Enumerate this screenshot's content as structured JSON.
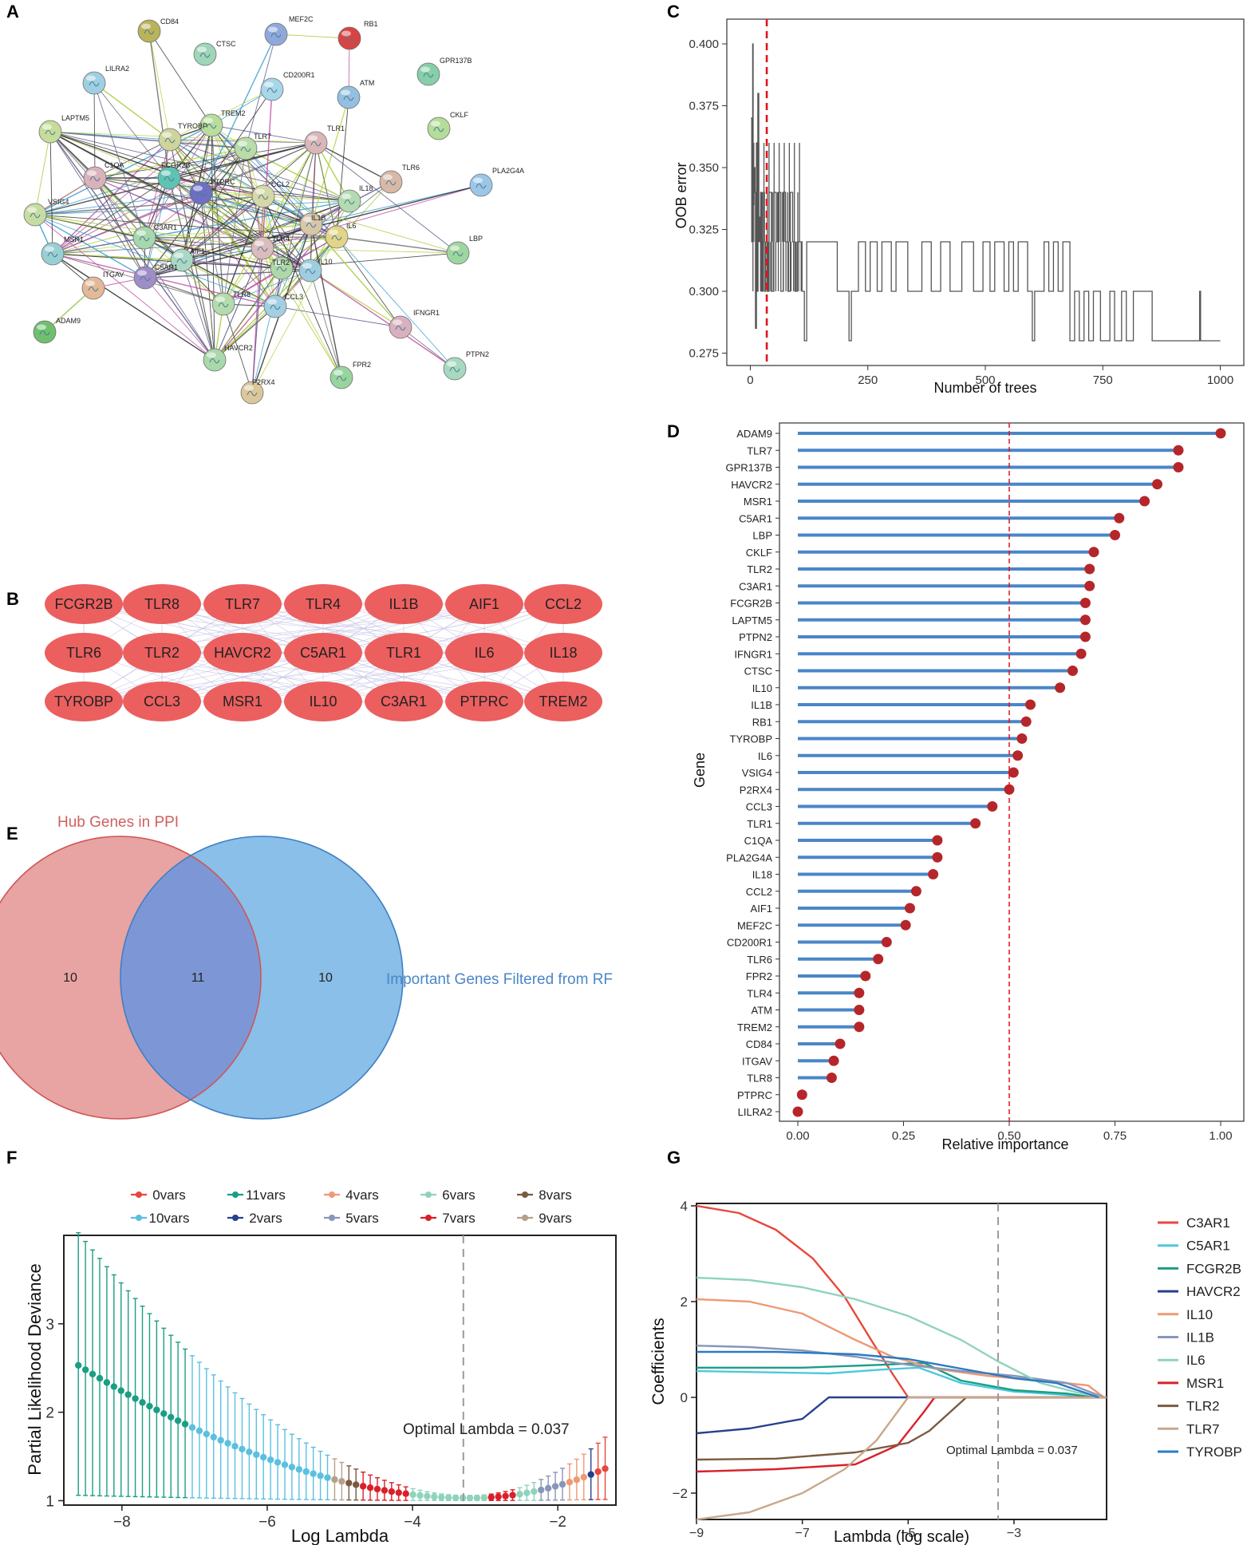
{
  "panels": {
    "A": "A",
    "B": "B",
    "C": "C",
    "D": "D",
    "E": "E",
    "F": "F",
    "G": "G"
  },
  "ppi_network": {
    "nodes": [
      {
        "id": "CD84",
        "color": "#b9b35a"
      },
      {
        "id": "CTSC",
        "color": "#9fd5b8"
      },
      {
        "id": "MEF2C",
        "color": "#8fa8dc"
      },
      {
        "id": "RB1",
        "color": "#d84343"
      },
      {
        "id": "GPR137B",
        "color": "#86cfa9"
      },
      {
        "id": "LILRA2",
        "color": "#9fcfe3"
      },
      {
        "id": "CD200R1",
        "color": "#a7d7e8"
      },
      {
        "id": "ATM",
        "color": "#93bfe0"
      },
      {
        "id": "CKLF",
        "color": "#b4dc9a"
      },
      {
        "id": "LAPTM5",
        "color": "#c6dc9a"
      },
      {
        "id": "TREM2",
        "color": "#b7de9c"
      },
      {
        "id": "TYROBP",
        "color": "#cfd49c"
      },
      {
        "id": "TLR1",
        "color": "#dbb6b9"
      },
      {
        "id": "TLR7",
        "color": "#b9dca8"
      },
      {
        "id": "C1QA",
        "color": "#dab2bb"
      },
      {
        "id": "FCGR2B",
        "color": "#5fc3b4"
      },
      {
        "id": "TLR6",
        "color": "#d8b8a6"
      },
      {
        "id": "PLA2G4A",
        "color": "#9cc6e8"
      },
      {
        "id": "PTPRC",
        "color": "#6d6fc2"
      },
      {
        "id": "CCL2",
        "color": "#d5d8a8"
      },
      {
        "id": "IL18",
        "color": "#b3dbb1"
      },
      {
        "id": "VSIG4",
        "color": "#c7dca3"
      },
      {
        "id": "IL1B",
        "color": "#d7c6a8"
      },
      {
        "id": "IL6",
        "color": "#e2d489"
      },
      {
        "id": "C3AR1",
        "color": "#a6d7ae"
      },
      {
        "id": "TLR4",
        "color": "#dbbcbd"
      },
      {
        "id": "MSR1",
        "color": "#98cfd3"
      },
      {
        "id": "LBP",
        "color": "#9ed69f"
      },
      {
        "id": "AIF1",
        "color": "#a9d9c4"
      },
      {
        "id": "TLR2",
        "color": "#aed8a8"
      },
      {
        "id": "IL10",
        "color": "#9fcde0"
      },
      {
        "id": "C5AR1",
        "color": "#9d8ec8"
      },
      {
        "id": "ITGAV",
        "color": "#e3b998"
      },
      {
        "id": "TLR8",
        "color": "#b4dbac"
      },
      {
        "id": "CCL3",
        "color": "#a3cfe3"
      },
      {
        "id": "IFNGR1",
        "color": "#d9b0be"
      },
      {
        "id": "ADAM9",
        "color": "#6fbf6f"
      },
      {
        "id": "HAVCR2",
        "color": "#a9d8ab"
      },
      {
        "id": "PTPN2",
        "color": "#a7d9c0"
      },
      {
        "id": "FPR2",
        "color": "#99d49e"
      },
      {
        "id": "P2RX4",
        "color": "#dcc79a"
      }
    ]
  },
  "hub_genes": {
    "rows": [
      [
        "FCGR2B",
        "TLR8",
        "TLR7",
        "TLR4",
        "IL1B",
        "AIF1",
        "CCL2"
      ],
      [
        "TLR6",
        "TLR2",
        "HAVCR2",
        "C5AR1",
        "TLR1",
        "IL6",
        "IL18"
      ],
      [
        "TYROBP",
        "CCL3",
        "MSR1",
        "IL10",
        "C3AR1",
        "PTPRC",
        "TREM2"
      ]
    ],
    "node_color": "#ec5f5f"
  },
  "venn": {
    "set_a": "Hub Genes in PPI",
    "set_b": "Important Genes Filtered from RF",
    "only_a": "10",
    "both": "11",
    "only_b": "10",
    "color_a": "#e8a3a3",
    "color_b": "#89bfe8",
    "color_overlap": "#7d97d6"
  },
  "chart_data": [
    {
      "panel": "C",
      "type": "line",
      "xlabel": "Number of trees",
      "ylabel": "OOB error",
      "xlim": [
        -50,
        1050
      ],
      "ylim": [
        0.27,
        0.41
      ],
      "xticks": [
        0,
        250,
        500,
        750,
        1000
      ],
      "yticks": [
        "0.275",
        "0.300",
        "0.325",
        "0.350",
        "0.375",
        "0.400"
      ],
      "optimal_trees": 35,
      "series_color": "#555555",
      "segments": [
        [
          1,
          0.37
        ],
        [
          3,
          0.32
        ],
        [
          5,
          0.4
        ],
        [
          6,
          0.335
        ],
        [
          8,
          0.35
        ],
        [
          10,
          0.34
        ],
        [
          11,
          0.285
        ],
        [
          13,
          0.36
        ],
        [
          15,
          0.3
        ],
        [
          16,
          0.38
        ],
        [
          18,
          0.33
        ],
        [
          20,
          0.32
        ],
        [
          22,
          0.34
        ],
        [
          24,
          0.3
        ],
        [
          26,
          0.32
        ],
        [
          28,
          0.34
        ],
        [
          30,
          0.3
        ],
        [
          33,
          0.32
        ],
        [
          36,
          0.3
        ],
        [
          40,
          0.34
        ],
        [
          45,
          0.3
        ],
        [
          50,
          0.34
        ],
        [
          55,
          0.32
        ],
        [
          60,
          0.34
        ],
        [
          65,
          0.3
        ],
        [
          70,
          0.34
        ],
        [
          75,
          0.32
        ],
        [
          80,
          0.3
        ],
        [
          85,
          0.34
        ],
        [
          90,
          0.32
        ],
        [
          95,
          0.3
        ],
        [
          100,
          0.32
        ],
        [
          105,
          0.32
        ],
        [
          110,
          0.3
        ],
        [
          115,
          0.28
        ],
        [
          120,
          0.32
        ],
        [
          180,
          0.32
        ],
        [
          185,
          0.3
        ],
        [
          205,
          0.3
        ],
        [
          210,
          0.28
        ],
        [
          215,
          0.3
        ],
        [
          230,
          0.32
        ],
        [
          245,
          0.3
        ],
        [
          255,
          0.32
        ],
        [
          270,
          0.3
        ],
        [
          280,
          0.32
        ],
        [
          300,
          0.3
        ],
        [
          310,
          0.32
        ],
        [
          330,
          0.32
        ],
        [
          335,
          0.3
        ],
        [
          360,
          0.3
        ],
        [
          365,
          0.32
        ],
        [
          380,
          0.32
        ],
        [
          385,
          0.3
        ],
        [
          400,
          0.3
        ],
        [
          405,
          0.32
        ],
        [
          420,
          0.32
        ],
        [
          425,
          0.3
        ],
        [
          445,
          0.3
        ],
        [
          450,
          0.32
        ],
        [
          470,
          0.32
        ],
        [
          475,
          0.3
        ],
        [
          490,
          0.3
        ],
        [
          495,
          0.32
        ],
        [
          510,
          0.3
        ],
        [
          520,
          0.32
        ],
        [
          540,
          0.3
        ],
        [
          550,
          0.32
        ],
        [
          560,
          0.3
        ],
        [
          570,
          0.32
        ],
        [
          590,
          0.3
        ],
        [
          600,
          0.28
        ],
        [
          605,
          0.3
        ],
        [
          620,
          0.3
        ],
        [
          625,
          0.32
        ],
        [
          635,
          0.3
        ],
        [
          645,
          0.32
        ],
        [
          655,
          0.3
        ],
        [
          665,
          0.32
        ],
        [
          680,
          0.28
        ],
        [
          690,
          0.3
        ],
        [
          700,
          0.28
        ],
        [
          710,
          0.3
        ],
        [
          720,
          0.28
        ],
        [
          730,
          0.3
        ],
        [
          745,
          0.28
        ],
        [
          760,
          0.28
        ],
        [
          765,
          0.3
        ],
        [
          775,
          0.28
        ],
        [
          790,
          0.3
        ],
        [
          800,
          0.28
        ],
        [
          815,
          0.3
        ],
        [
          850,
          0.3
        ],
        [
          855,
          0.28
        ],
        [
          955,
          0.28
        ],
        [
          956,
          0.3
        ],
        [
          958,
          0.28
        ],
        [
          1000,
          0.28
        ]
      ]
    },
    {
      "panel": "D",
      "type": "lollipop",
      "xlabel": "Relative importance",
      "ylabel": "Gene",
      "xlim": [
        0,
        1
      ],
      "xticks": [
        "0.00",
        "0.25",
        "0.50",
        "0.75",
        "1.00"
      ],
      "threshold": 0.5,
      "stem_color": "#4a86c8",
      "dot_color": "#b5262a",
      "categories": [
        "ADAM9",
        "TLR7",
        "GPR137B",
        "HAVCR2",
        "MSR1",
        "C5AR1",
        "LBP",
        "CKLF",
        "TLR2",
        "C3AR1",
        "FCGR2B",
        "LAPTM5",
        "PTPN2",
        "IFNGR1",
        "CTSC",
        "IL10",
        "IL1B",
        "RB1",
        "TYROBP",
        "IL6",
        "VSIG4",
        "P2RX4",
        "CCL3",
        "TLR1",
        "C1QA",
        "PLA2G4A",
        "IL18",
        "CCL2",
        "AIF1",
        "MEF2C",
        "CD200R1",
        "TLR6",
        "FPR2",
        "TLR4",
        "ATM",
        "TREM2",
        "CD84",
        "ITGAV",
        "TLR8",
        "PTPRC",
        "LILRA2"
      ],
      "values": [
        1.0,
        0.9,
        0.9,
        0.85,
        0.82,
        0.76,
        0.75,
        0.7,
        0.69,
        0.69,
        0.68,
        0.68,
        0.68,
        0.67,
        0.65,
        0.62,
        0.55,
        0.54,
        0.53,
        0.52,
        0.51,
        0.5,
        0.46,
        0.42,
        0.33,
        0.33,
        0.32,
        0.28,
        0.265,
        0.255,
        0.21,
        0.19,
        0.16,
        0.145,
        0.145,
        0.145,
        0.1,
        0.085,
        0.08,
        0.01,
        0.0
      ]
    },
    {
      "panel": "F",
      "type": "errorbar",
      "xlabel": "Log Lambda",
      "ylabel": "Partial Likelihood Deviance",
      "xlim": [
        -8.8,
        -1.2
      ],
      "ylim": [
        0.95,
        4.0
      ],
      "xticks": [
        "-8",
        "-6",
        "-4",
        "-2"
      ],
      "yticks": [
        "1",
        "2",
        "3"
      ],
      "optimal_log_lambda": -3.3,
      "annotation": "Optimal Lambda = 0.037",
      "legend": [
        {
          "label": "0vars",
          "color": "#e8473c"
        },
        {
          "label": "11vars",
          "color": "#1a9e84"
        },
        {
          "label": "4vars",
          "color": "#ee9a75"
        },
        {
          "label": "6vars",
          "color": "#8fd3bd"
        },
        {
          "label": "8vars",
          "color": "#7a5b3f"
        },
        {
          "label": "10vars",
          "color": "#5bc0e0"
        },
        {
          "label": "2vars",
          "color": "#26408e"
        },
        {
          "label": "5vars",
          "color": "#8896b9"
        },
        {
          "label": "7vars",
          "color": "#d9202a"
        },
        {
          "label": "9vars",
          "color": "#b5a08a"
        }
      ]
    },
    {
      "panel": "G",
      "type": "line",
      "xlabel": "Lambda (log scale)",
      "ylabel": "Coefficients",
      "xlim": [
        -9,
        -1.25
      ],
      "ylim": [
        -2.55,
        4.05
      ],
      "xticks": [
        "-9",
        "-7",
        "-5",
        "-3"
      ],
      "yticks": [
        "-2",
        "0",
        "2",
        "4"
      ],
      "optimal_log_lambda": -3.3,
      "annotation": "Optimal Lambda = 0.037",
      "series": [
        {
          "name": "C3AR1",
          "color": "#e8473c",
          "values": [
            [
              -9,
              4.0
            ],
            [
              -8.2,
              3.85
            ],
            [
              -7.5,
              3.5
            ],
            [
              -6.8,
              2.9
            ],
            [
              -6.2,
              2.1
            ],
            [
              -5.7,
              1.2
            ],
            [
              -5.3,
              0.5
            ],
            [
              -5.0,
              0.0
            ]
          ]
        },
        {
          "name": "C5AR1",
          "color": "#4fc8dc",
          "values": [
            [
              -9,
              0.55
            ],
            [
              -7.5,
              0.52
            ],
            [
              -6.5,
              0.5
            ],
            [
              -5.5,
              0.58
            ],
            [
              -4.8,
              0.62
            ],
            [
              -4.0,
              0.3
            ],
            [
              -3.0,
              0.12
            ],
            [
              -2.0,
              0.05
            ],
            [
              -1.5,
              0.0
            ]
          ]
        },
        {
          "name": "FCGR2B",
          "color": "#1a9e84",
          "values": [
            [
              -9,
              0.62
            ],
            [
              -7,
              0.62
            ],
            [
              -5.5,
              0.68
            ],
            [
              -4.7,
              0.72
            ],
            [
              -4.0,
              0.35
            ],
            [
              -3.0,
              0.15
            ],
            [
              -2.0,
              0.08
            ],
            [
              -1.5,
              0.0
            ]
          ]
        },
        {
          "name": "HAVCR2",
          "color": "#26408e",
          "values": [
            [
              -9,
              -0.75
            ],
            [
              -8,
              -0.65
            ],
            [
              -7,
              -0.45
            ],
            [
              -6.5,
              0.0
            ],
            [
              -1.25,
              0.0
            ]
          ]
        },
        {
          "name": "IL10",
          "color": "#ee9a75",
          "values": [
            [
              -9,
              2.05
            ],
            [
              -8,
              2.0
            ],
            [
              -7,
              1.75
            ],
            [
              -6,
              1.2
            ],
            [
              -5.3,
              0.85
            ],
            [
              -4.5,
              0.6
            ],
            [
              -3.5,
              0.45
            ],
            [
              -2.5,
              0.35
            ],
            [
              -1.6,
              0.25
            ],
            [
              -1.3,
              0.0
            ]
          ]
        },
        {
          "name": "IL1B",
          "color": "#8896b9",
          "values": [
            [
              -9,
              1.08
            ],
            [
              -8,
              1.05
            ],
            [
              -7,
              0.98
            ],
            [
              -6,
              0.85
            ],
            [
              -5,
              0.68
            ],
            [
              -4,
              0.55
            ],
            [
              -3,
              0.45
            ],
            [
              -2,
              0.3
            ],
            [
              -1.3,
              0.0
            ]
          ]
        },
        {
          "name": "IL6",
          "color": "#8fd3bd",
          "values": [
            [
              -9,
              2.5
            ],
            [
              -8,
              2.45
            ],
            [
              -7,
              2.3
            ],
            [
              -6,
              2.05
            ],
            [
              -5,
              1.7
            ],
            [
              -4,
              1.2
            ],
            [
              -3.3,
              0.75
            ],
            [
              -2.5,
              0.3
            ],
            [
              -1.8,
              0.1
            ],
            [
              -1.3,
              0.0
            ]
          ]
        },
        {
          "name": "MSR1",
          "color": "#d9202a",
          "values": [
            [
              -9,
              -1.55
            ],
            [
              -7.5,
              -1.5
            ],
            [
              -6,
              -1.4
            ],
            [
              -5.2,
              -1.0
            ],
            [
              -4.7,
              -0.3
            ],
            [
              -4.5,
              0.0
            ],
            [
              -1.25,
              0.0
            ]
          ]
        },
        {
          "name": "TLR2",
          "color": "#7a5b3f",
          "values": [
            [
              -9,
              -1.3
            ],
            [
              -7.5,
              -1.28
            ],
            [
              -6,
              -1.15
            ],
            [
              -5,
              -0.95
            ],
            [
              -4.6,
              -0.7
            ],
            [
              -4.2,
              -0.3
            ],
            [
              -3.9,
              0.0
            ],
            [
              -1.25,
              0.0
            ]
          ]
        },
        {
          "name": "TLR7",
          "color": "#c8a88c",
          "values": [
            [
              -9,
              -2.55
            ],
            [
              -8,
              -2.4
            ],
            [
              -7,
              -2.0
            ],
            [
              -6.2,
              -1.5
            ],
            [
              -5.6,
              -0.9
            ],
            [
              -5.2,
              -0.3
            ],
            [
              -5.0,
              0.0
            ],
            [
              -1.25,
              0.0
            ]
          ]
        },
        {
          "name": "TYROBP",
          "color": "#2b7bc0",
          "values": [
            [
              -9,
              0.95
            ],
            [
              -7.5,
              0.95
            ],
            [
              -6,
              0.9
            ],
            [
              -5,
              0.8
            ],
            [
              -4,
              0.6
            ],
            [
              -3,
              0.4
            ],
            [
              -2.2,
              0.3
            ],
            [
              -1.4,
              0.0
            ]
          ]
        }
      ]
    }
  ]
}
